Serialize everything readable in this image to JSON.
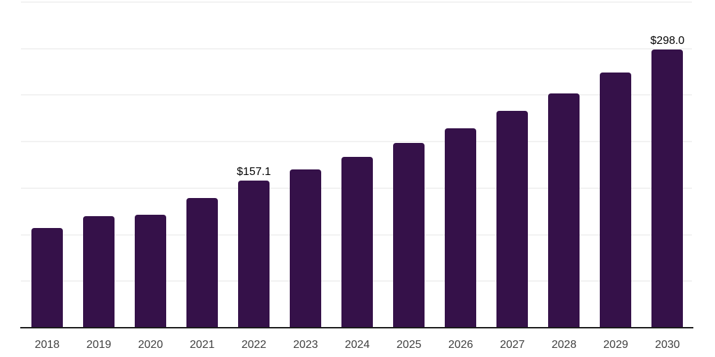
{
  "chart_data": {
    "type": "bar",
    "title": "",
    "xlabel": "",
    "ylabel": "",
    "categories": [
      "2018",
      "2019",
      "2020",
      "2021",
      "2022",
      "2023",
      "2024",
      "2025",
      "2026",
      "2027",
      "2028",
      "2029",
      "2030"
    ],
    "values": [
      106.3,
      118.9,
      120.4,
      138.9,
      157.1,
      169.2,
      182.8,
      198.0,
      213.7,
      232.1,
      251.2,
      273.7,
      298.0
    ],
    "data_labels": [
      {
        "index": 4,
        "text": "$157.1"
      },
      {
        "index": 12,
        "text": "$298.0"
      }
    ],
    "ylim": [
      0,
      350
    ],
    "gridline_step": 50,
    "grid": "horizontal",
    "y_axis_labels_visible": false,
    "legend_position": "none",
    "colors": {
      "bar": "#351149",
      "axis_line": "#1a1a1a",
      "gridline": "#f2f2f2",
      "tick_label": "#404040",
      "data_label": "#000000",
      "background": "#ffffff"
    }
  }
}
